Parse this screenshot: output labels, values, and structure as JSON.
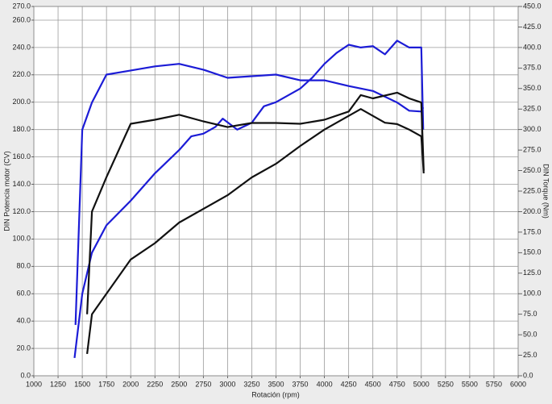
{
  "chart_data": {
    "type": "line",
    "x_label": "Rotación (rpm)",
    "y_label": "DIN Potencia motor (CV)",
    "y2_label": "DIN Torque (Nm)",
    "xlim": [
      1000,
      6000
    ],
    "xticks": [
      1000,
      1250,
      1500,
      1750,
      2000,
      2250,
      2500,
      2750,
      3000,
      3250,
      3500,
      3750,
      4000,
      4250,
      4500,
      4750,
      5000,
      5250,
      5500,
      5750,
      6000
    ],
    "ylim": [
      0,
      270
    ],
    "yticks": [
      {
        "value": 0,
        "label": "0.0"
      },
      {
        "value": 20,
        "label": "20.0"
      },
      {
        "value": 40,
        "label": "40.0"
      },
      {
        "value": 60,
        "label": "60.0"
      },
      {
        "value": 80,
        "label": "80.0"
      },
      {
        "value": 100,
        "label": "100.0"
      },
      {
        "value": 120,
        "label": "120.0"
      },
      {
        "value": 140,
        "label": "140.0"
      },
      {
        "value": 160,
        "label": "160.0"
      },
      {
        "value": 180,
        "label": "180.0"
      },
      {
        "value": 200,
        "label": "200.0"
      },
      {
        "value": 220,
        "label": "220.0"
      },
      {
        "value": 240,
        "label": "240.0"
      },
      {
        "value": 260,
        "label": "260.0"
      },
      {
        "value": 270,
        "label": "270.0"
      }
    ],
    "y2lim": [
      0,
      450
    ],
    "y2ticks": [
      {
        "value": 0,
        "label": "0.0"
      },
      {
        "value": 25,
        "label": "25.0"
      },
      {
        "value": 50,
        "label": "50.0"
      },
      {
        "value": 75,
        "label": "75.0"
      },
      {
        "value": 100,
        "label": "100.0"
      },
      {
        "value": 125,
        "label": "125.0"
      },
      {
        "value": 150,
        "label": "150.0"
      },
      {
        "value": 175,
        "label": "175.0"
      },
      {
        "value": 200,
        "label": "200.0"
      },
      {
        "value": 225,
        "label": "225.0"
      },
      {
        "value": 250,
        "label": "250.0"
      },
      {
        "value": 275,
        "label": "275.0"
      },
      {
        "value": 300,
        "label": "300.0"
      },
      {
        "value": 325,
        "label": "325.0"
      },
      {
        "value": 350,
        "label": "350.0"
      },
      {
        "value": 375,
        "label": "375.0"
      },
      {
        "value": 400,
        "label": "400.0"
      },
      {
        "value": 425,
        "label": "425.0"
      },
      {
        "value": 450,
        "label": "450.0"
      }
    ],
    "grid": true,
    "series": [
      {
        "color": "#1c1cd6",
        "x": [
          1420,
          1500,
          1600,
          1750,
          2000,
          2250,
          2500,
          2625,
          2750,
          2875,
          2950,
          3100,
          3250,
          3375,
          3500,
          3750,
          3875,
          4000,
          4125,
          4250,
          4375,
          4500,
          4625,
          4750,
          4875,
          5000,
          5020
        ],
        "values": [
          13,
          60,
          90,
          110,
          128,
          148,
          165,
          175,
          177,
          182,
          188,
          180,
          185,
          197,
          200,
          210,
          218,
          228,
          236,
          242,
          240,
          241,
          235,
          245,
          240,
          240,
          180
        ]
      },
      {
        "color": "#1c1cd6",
        "axis": "y2",
        "x": [
          1430,
          1500,
          1600,
          1750,
          2000,
          2250,
          2500,
          2750,
          3000,
          3250,
          3500,
          3750,
          4000,
          4250,
          4500,
          4750,
          4875,
          5000,
          5020
        ],
        "values": [
          62,
          300,
          333,
          367,
          372,
          377,
          380,
          373,
          363,
          365,
          367,
          360,
          360,
          353,
          347,
          333,
          323,
          322,
          327
        ]
      },
      {
        "color": "#111111",
        "x": [
          1550,
          1600,
          1750,
          2000,
          2250,
          2500,
          2750,
          3000,
          3250,
          3500,
          3750,
          4000,
          4250,
          4375,
          4500,
          4625,
          4750,
          4875,
          5000,
          5025
        ],
        "values": [
          16,
          45,
          60,
          85,
          97,
          112,
          122,
          132,
          145,
          155,
          168,
          180,
          190,
          195,
          190,
          185,
          184,
          180,
          175,
          148
        ]
      },
      {
        "color": "#111111",
        "axis": "y2",
        "x": [
          1550,
          1600,
          1750,
          2000,
          2250,
          2500,
          2750,
          3000,
          3250,
          3500,
          3750,
          4000,
          4250,
          4375,
          4500,
          4750,
          4875,
          5000,
          5025
        ],
        "values": [
          75,
          200,
          242,
          307,
          312,
          318,
          310,
          303,
          308,
          308,
          307,
          312,
          322,
          342,
          338,
          345,
          338,
          333,
          250
        ]
      }
    ]
  }
}
